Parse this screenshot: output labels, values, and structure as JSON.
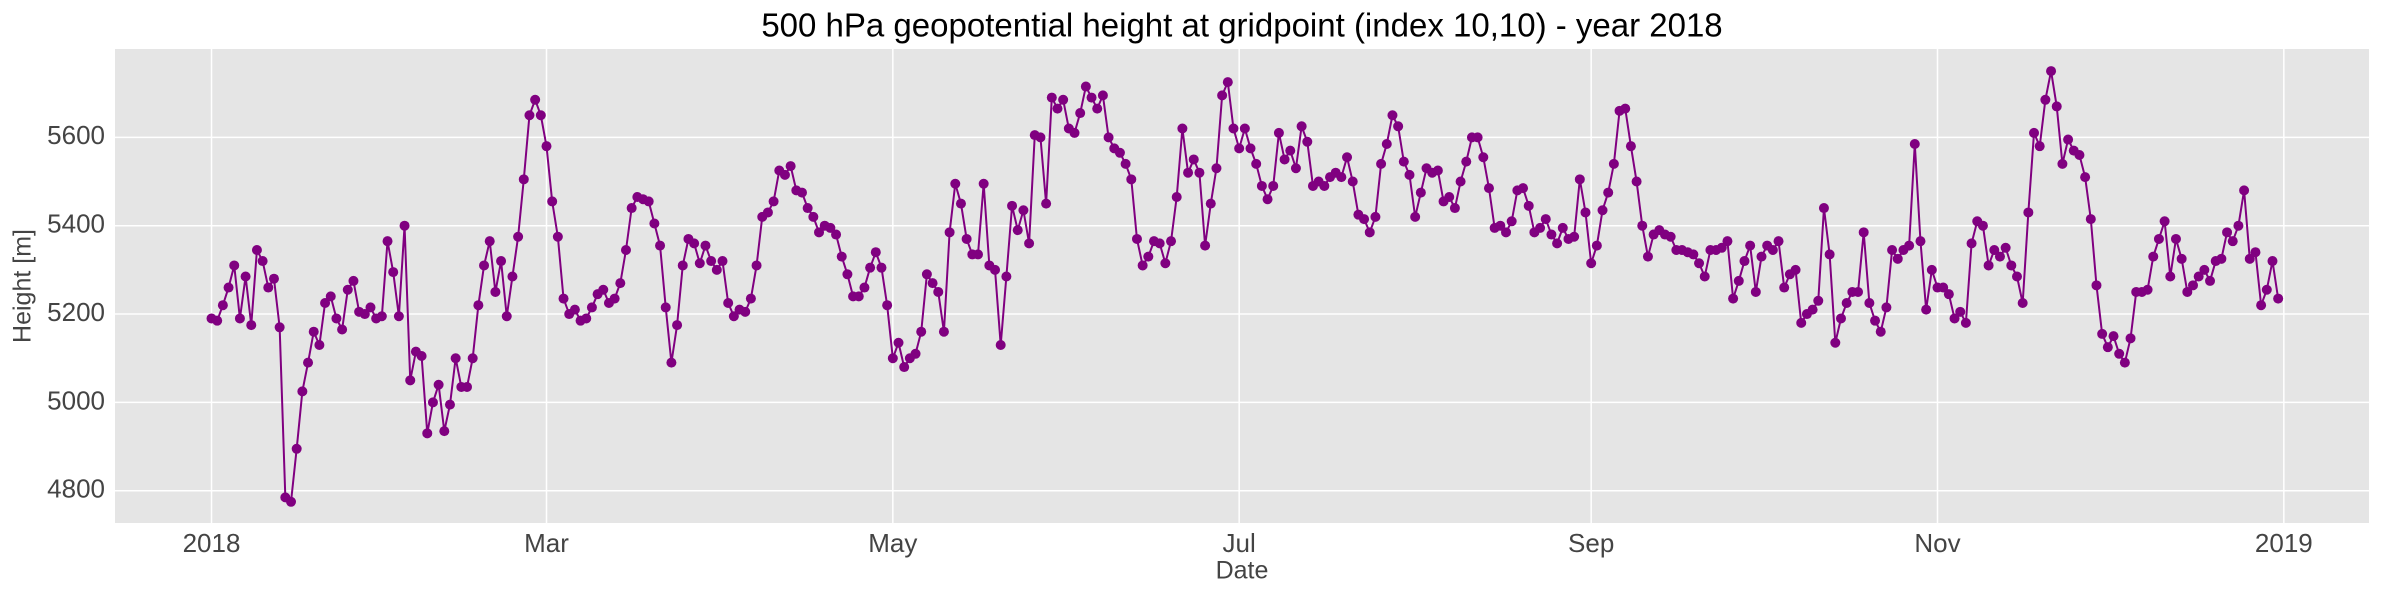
{
  "chart_data": {
    "type": "line",
    "title": "500 hPa geopotential height at gridpoint (index 10,10) - year 2018",
    "x_label": "Date",
    "y_label": "Height [m]",
    "x": [
      0,
      1,
      2,
      3,
      4,
      5,
      6,
      7,
      8,
      9,
      10,
      11,
      12,
      13,
      14,
      15,
      16,
      17,
      18,
      19,
      20,
      21,
      22,
      23,
      24,
      25,
      26,
      27,
      28,
      29,
      30,
      31,
      32,
      33,
      34,
      35,
      36,
      37,
      38,
      39,
      40,
      41,
      42,
      43,
      44,
      45,
      46,
      47,
      48,
      49,
      50,
      51,
      52,
      53,
      54,
      55,
      56,
      57,
      58,
      59,
      60,
      61,
      62,
      63,
      64,
      65,
      66,
      67,
      68,
      69,
      70,
      71,
      72,
      73,
      74,
      75,
      76,
      77,
      78,
      79,
      80,
      81,
      82,
      83,
      84,
      85,
      86,
      87,
      88,
      89,
      90,
      91,
      92,
      93,
      94,
      95,
      96,
      97,
      98,
      99,
      100,
      101,
      102,
      103,
      104,
      105,
      106,
      107,
      108,
      109,
      110,
      111,
      112,
      113,
      114,
      115,
      116,
      117,
      118,
      119,
      120,
      121,
      122,
      123,
      124,
      125,
      126,
      127,
      128,
      129,
      130,
      131,
      132,
      133,
      134,
      135,
      136,
      137,
      138,
      139,
      140,
      141,
      142,
      143,
      144,
      145,
      146,
      147,
      148,
      149,
      150,
      151,
      152,
      153,
      154,
      155,
      156,
      157,
      158,
      159,
      160,
      161,
      162,
      163,
      164,
      165,
      166,
      167,
      168,
      169,
      170,
      171,
      172,
      173,
      174,
      175,
      176,
      177,
      178,
      179,
      180,
      181,
      182,
      183,
      184,
      185,
      186,
      187,
      188,
      189,
      190,
      191,
      192,
      193,
      194,
      195,
      196,
      197,
      198,
      199,
      200,
      201,
      202,
      203,
      204,
      205,
      206,
      207,
      208,
      209,
      210,
      211,
      212,
      213,
      214,
      215,
      216,
      217,
      218,
      219,
      220,
      221,
      222,
      223,
      224,
      225,
      226,
      227,
      228,
      229,
      230,
      231,
      232,
      233,
      234,
      235,
      236,
      237,
      238,
      239,
      240,
      241,
      242,
      243,
      244,
      245,
      246,
      247,
      248,
      249,
      250,
      251,
      252,
      253,
      254,
      255,
      256,
      257,
      258,
      259,
      260,
      261,
      262,
      263,
      264,
      265,
      266,
      267,
      268,
      269,
      270,
      271,
      272,
      273,
      274,
      275,
      276,
      277,
      278,
      279,
      280,
      281,
      282,
      283,
      284,
      285,
      286,
      287,
      288,
      289,
      290,
      291,
      292,
      293,
      294,
      295,
      296,
      297,
      298,
      299,
      300,
      301,
      302,
      303,
      304,
      305,
      306,
      307,
      308,
      309,
      310,
      311,
      312,
      313,
      314,
      315,
      316,
      317,
      318,
      319,
      320,
      321,
      322,
      323,
      324,
      325,
      326,
      327,
      328,
      329,
      330,
      331,
      332,
      333,
      334,
      335,
      336,
      337,
      338,
      339,
      340,
      341,
      342,
      343,
      344,
      345,
      346,
      347,
      348,
      349,
      350,
      351,
      352,
      353,
      354,
      355,
      356,
      357,
      358,
      359,
      360,
      361,
      362,
      363,
      364
    ],
    "series": [
      {
        "color": "#800080",
        "values": [
          5190,
          5185,
          5220,
          5260,
          5310,
          5190,
          5285,
          5175,
          5345,
          5320,
          5260,
          5280,
          5170,
          4785,
          4775,
          4895,
          5025,
          5090,
          5160,
          5130,
          5225,
          5240,
          5190,
          5165,
          5255,
          5275,
          5205,
          5200,
          5215,
          5190,
          5195,
          5365,
          5295,
          5195,
          5400,
          5050,
          5115,
          5105,
          4930,
          5000,
          5040,
          4935,
          4995,
          5100,
          5035,
          5035,
          5100,
          5220,
          5310,
          5365,
          5250,
          5320,
          5195,
          5285,
          5375,
          5505,
          5650,
          5685,
          5650,
          5580,
          5455,
          5375,
          5235,
          5200,
          5210,
          5185,
          5190,
          5215,
          5245,
          5255,
          5225,
          5235,
          5270,
          5345,
          5440,
          5465,
          5460,
          5455,
          5405,
          5355,
          5215,
          5090,
          5175,
          5310,
          5370,
          5360,
          5315,
          5355,
          5320,
          5300,
          5320,
          5225,
          5195,
          5210,
          5205,
          5235,
          5310,
          5420,
          5430,
          5455,
          5525,
          5515,
          5535,
          5480,
          5475,
          5440,
          5420,
          5385,
          5400,
          5395,
          5380,
          5330,
          5290,
          5240,
          5240,
          5260,
          5305,
          5340,
          5305,
          5220,
          5100,
          5135,
          5080,
          5100,
          5110,
          5160,
          5290,
          5270,
          5250,
          5160,
          5385,
          5495,
          5450,
          5370,
          5335,
          5335,
          5495,
          5310,
          5300,
          5130,
          5285,
          5445,
          5390,
          5435,
          5360,
          5605,
          5600,
          5450,
          5690,
          5665,
          5685,
          5620,
          5610,
          5655,
          5715,
          5690,
          5665,
          5695,
          5600,
          5575,
          5565,
          5540,
          5505,
          5370,
          5310,
          5330,
          5365,
          5360,
          5315,
          5365,
          5465,
          5620,
          5520,
          5550,
          5520,
          5355,
          5450,
          5530,
          5695,
          5725,
          5620,
          5575,
          5620,
          5575,
          5540,
          5490,
          5460,
          5490,
          5610,
          5550,
          5570,
          5530,
          5625,
          5590,
          5490,
          5500,
          5490,
          5510,
          5520,
          5510,
          5555,
          5500,
          5425,
          5415,
          5385,
          5420,
          5540,
          5585,
          5650,
          5625,
          5545,
          5515,
          5420,
          5475,
          5530,
          5520,
          5525,
          5455,
          5465,
          5440,
          5500,
          5545,
          5600,
          5600,
          5555,
          5485,
          5395,
          5400,
          5385,
          5410,
          5480,
          5485,
          5445,
          5385,
          5395,
          5415,
          5380,
          5360,
          5395,
          5370,
          5375,
          5505,
          5430,
          5315,
          5355,
          5435,
          5475,
          5540,
          5660,
          5665,
          5580,
          5500,
          5400,
          5330,
          5380,
          5390,
          5380,
          5375,
          5345,
          5345,
          5340,
          5335,
          5315,
          5285,
          5345,
          5345,
          5350,
          5365,
          5235,
          5275,
          5320,
          5355,
          5250,
          5330,
          5355,
          5345,
          5365,
          5260,
          5290,
          5300,
          5180,
          5200,
          5210,
          5230,
          5440,
          5335,
          5135,
          5190,
          5225,
          5250,
          5250,
          5385,
          5225,
          5185,
          5160,
          5215,
          5345,
          5325,
          5345,
          5355,
          5585,
          5365,
          5210,
          5300,
          5260,
          5260,
          5245,
          5190,
          5205,
          5180,
          5360,
          5410,
          5400,
          5310,
          5345,
          5330,
          5350,
          5310,
          5285,
          5225,
          5430,
          5610,
          5580,
          5685,
          5750,
          5670,
          5540,
          5595,
          5570,
          5560,
          5510,
          5415,
          5265,
          5155,
          5125,
          5150,
          5110,
          5090,
          5145,
          5250,
          5250,
          5255,
          5330,
          5370,
          5410,
          5285,
          5370,
          5325,
          5250,
          5265,
          5285,
          5300,
          5275,
          5320,
          5325,
          5385,
          5365,
          5400,
          5480,
          5325,
          5340,
          5220,
          5255,
          5320,
          5235
        ]
      }
    ],
    "xlim": [
      -17,
      380
    ],
    "xticks": [
      {
        "value": 0,
        "label": "2018"
      },
      {
        "value": 59,
        "label": "Mar"
      },
      {
        "value": 120,
        "label": "May"
      },
      {
        "value": 181,
        "label": "Jul"
      },
      {
        "value": 243,
        "label": "Sep"
      },
      {
        "value": 304,
        "label": "Nov"
      },
      {
        "value": 365,
        "label": "2019"
      }
    ],
    "ylim": [
      4727,
      5800
    ],
    "yticks": [
      4800,
      5000,
      5200,
      5400,
      5600
    ],
    "grid": true
  }
}
